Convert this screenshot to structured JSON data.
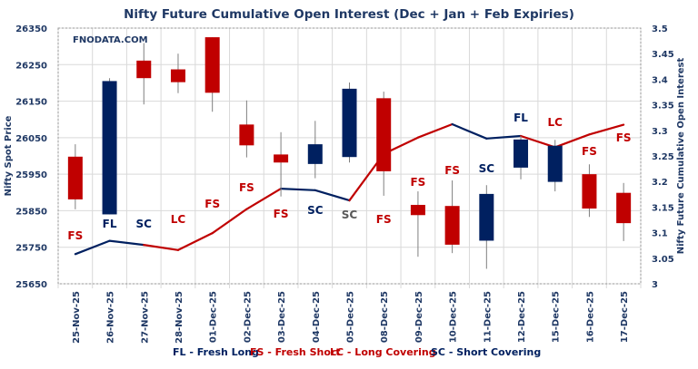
{
  "chart_data": {
    "type": "candlestick+line",
    "title": "Nifty Future Cumulative Open Interest (Dec + Jan  + Feb Expiries)",
    "watermark": "FNODATA.COM",
    "ylabel_left": "Nifty Spot Price",
    "ylabel_right": "Nifty Future Cumulative Open Interest",
    "ylim_left": [
      25650,
      26350
    ],
    "yticks_left": [
      "25650",
      "25750",
      "25850",
      "25950",
      "26050",
      "26150",
      "26250",
      "26350"
    ],
    "ylim_right": [
      3,
      3.5
    ],
    "yticks_right": [
      "3",
      "3.05",
      "3.1",
      "3.15",
      "3.2",
      "3.25",
      "3.3",
      "3.35",
      "3.4",
      "3.45",
      "3.5"
    ],
    "grid": true,
    "categories": [
      "25-Nov-25",
      "26-Nov-25",
      "27-Nov-25",
      "28-Nov-25",
      "01-Dec-25",
      "02-Dec-25",
      "03-Dec-25",
      "04-Dec-25",
      "05-Dec-25",
      "08-Dec-25",
      "09-Dec-25",
      "10-Dec-25",
      "11-Dec-25",
      "12-Dec-25",
      "15-Dec-25",
      "16-Dec-25",
      "17-Dec-25"
    ],
    "candles": [
      {
        "open": 25998,
        "high": 26032,
        "low": 25854,
        "close": 25881
      },
      {
        "open": 25840,
        "high": 26213,
        "low": 25840,
        "close": 26205
      },
      {
        "open": 26261,
        "high": 26309,
        "low": 26141,
        "close": 26213
      },
      {
        "open": 26237,
        "high": 26280,
        "low": 26172,
        "close": 26202
      },
      {
        "open": 26325,
        "high": 26325,
        "low": 26121,
        "close": 26173
      },
      {
        "open": 26086,
        "high": 26152,
        "low": 25996,
        "close": 26029
      },
      {
        "open": 26004,
        "high": 26065,
        "low": 25889,
        "close": 25982
      },
      {
        "open": 25978,
        "high": 26096,
        "low": 25939,
        "close": 26032
      },
      {
        "open": 25997,
        "high": 26201,
        "low": 25982,
        "close": 26184
      },
      {
        "open": 26158,
        "high": 26176,
        "low": 25891,
        "close": 25958
      },
      {
        "open": 25866,
        "high": 25903,
        "low": 25724,
        "close": 25838
      },
      {
        "open": 25863,
        "high": 25933,
        "low": 25734,
        "close": 25757
      },
      {
        "open": 25768,
        "high": 25920,
        "low": 25691,
        "close": 25896
      },
      {
        "open": 25968,
        "high": 26055,
        "low": 25936,
        "close": 26045
      },
      {
        "open": 25929,
        "high": 26044,
        "low": 25903,
        "close": 26028
      },
      {
        "open": 25950,
        "high": 25977,
        "low": 25833,
        "close": 25856
      },
      {
        "open": 25899,
        "high": 25926,
        "low": 25767,
        "close": 25816
      }
    ],
    "open_interest": [
      3.058,
      3.084,
      3.076,
      3.066,
      3.099,
      3.146,
      3.186,
      3.183,
      3.163,
      3.254,
      3.286,
      3.312,
      3.284,
      3.289,
      3.267,
      3.292,
      3.311
    ],
    "signals": [
      "FS",
      "FL",
      "SC",
      "LC",
      "FS",
      "FS",
      "FS",
      "SC",
      "SC",
      "FS",
      "FS",
      "FS",
      "SC",
      "FL",
      "LC",
      "FS",
      "FS"
    ],
    "signal_label_colors": [
      "#C00000",
      "#002060",
      "#002060",
      "#C00000",
      "#C00000",
      "#C00000",
      "#C00000",
      "#002060",
      "#595959",
      "#C00000",
      "#C00000",
      "#C00000",
      "#002060",
      "#002060",
      "#C00000",
      "#C00000",
      "#C00000"
    ],
    "legend": [
      {
        "text": "FL - Fresh Long",
        "color": "#002060"
      },
      {
        "text": "FS - Fresh Short",
        "color": "#C00000"
      },
      {
        "text": "LC - Long Covering",
        "color": "#C00000"
      },
      {
        "text": "SC - Short Covering",
        "color": "#002060"
      }
    ],
    "legend_position": "bottom",
    "colors": {
      "bullish": "#002060",
      "bearish": "#C00000",
      "axis_text": "#1F3864",
      "grid": "#D9D9D9"
    }
  }
}
